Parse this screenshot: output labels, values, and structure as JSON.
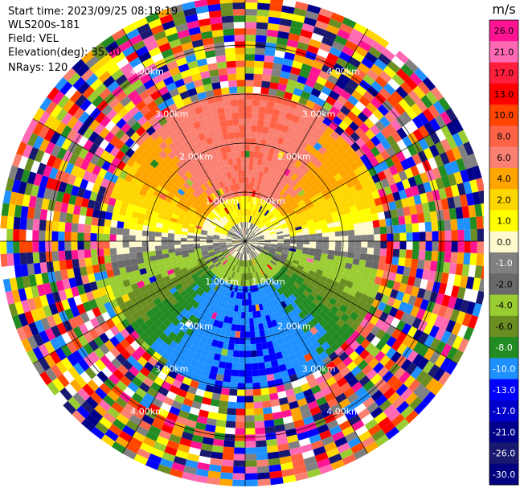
{
  "header": {
    "start_time": "Start time: 2023/09/25 08:18:19",
    "instrument": "WLS200s-181",
    "field": "Field: VEL",
    "elevation": "Elevation(deg): 35.30",
    "nrays": "NRays: 120"
  },
  "chart_data": {
    "type": "heatmap",
    "projection": "polar PPI",
    "field": "VEL",
    "nrays": 120,
    "elevation_deg": 35.3,
    "range_rings_km": [
      1.0,
      2.0,
      3.0,
      4.0
    ],
    "range_ring_labels": [
      "1.00km",
      "2.00km",
      "3.00km",
      "4.00km"
    ],
    "max_range_km": 5.0,
    "azimuth_spokes_deg": [
      0,
      30,
      60,
      90,
      120,
      150,
      180,
      210,
      240,
      270,
      300,
      330
    ],
    "valid_data_range_km": 3.0,
    "description_of_field": {
      "north_sector_ms": 8.0,
      "north_near_ms": 2.0,
      "east_west_ms": 0.0,
      "south_near_ms": -4.0,
      "south_sector_ms": -10.0,
      "beyond_valid_range": "noise"
    },
    "colorbar": {
      "title": "m/s",
      "ticks": [
        "26.0",
        "21.0",
        "17.0",
        "13.0",
        "10.0",
        "8.0",
        "6.0",
        "4.0",
        "2.0",
        "1.0",
        "0.0",
        "-1.0",
        "-2.0",
        "-4.0",
        "-6.0",
        "-8.0",
        "-10.0",
        "-13.0",
        "-17.0",
        "-21.0",
        "-26.0",
        "-30.0"
      ],
      "colors": [
        "#ff1493",
        "#ff69b4",
        "#ff1e3c",
        "#ff0000",
        "#ff4500",
        "#ff6347",
        "#fa8072",
        "#ffa500",
        "#ffd700",
        "#ffff00",
        "#fffacd",
        "#808080",
        "#696969",
        "#9acd32",
        "#6b8e23",
        "#228b22",
        "#1e90ff",
        "#0000ff",
        "#0000cd",
        "#00008b",
        "#191970",
        "#000080"
      ]
    },
    "noise_colors": [
      "#ff1493",
      "#ff69b4",
      "#ff0000",
      "#ff4500",
      "#ff6347",
      "#fa8072",
      "#ffa500",
      "#ffd700",
      "#ffff00",
      "#808080",
      "#9acd32",
      "#6b8e23",
      "#228b22",
      "#1e90ff",
      "#0000ff",
      "#00008b",
      "#191970",
      "#ffffff"
    ]
  }
}
